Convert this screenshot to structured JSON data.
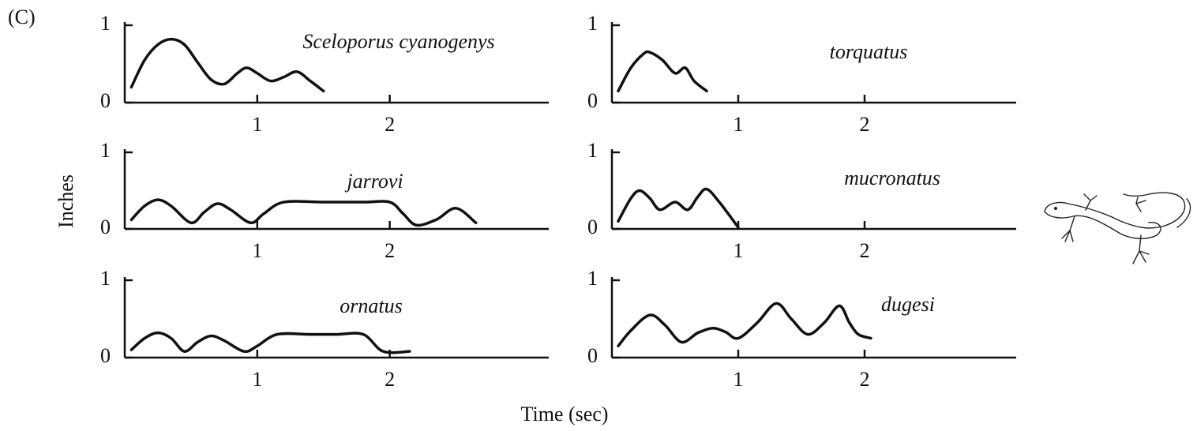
{
  "panel_label": "(C)",
  "ylabel": "Inches",
  "xlabel": "Time (sec)",
  "chart_data": [
    {
      "type": "line",
      "title": "Sceloporus cyanogenys",
      "x": [
        0.05,
        0.15,
        0.25,
        0.35,
        0.45,
        0.55,
        0.65,
        0.75,
        0.85,
        0.92,
        1.0,
        1.1,
        1.2,
        1.3,
        1.4,
        1.5
      ],
      "values": [
        0.2,
        0.55,
        0.75,
        0.82,
        0.75,
        0.52,
        0.3,
        0.24,
        0.38,
        0.45,
        0.38,
        0.28,
        0.33,
        0.4,
        0.28,
        0.15
      ],
      "xlim": [
        0,
        3.2
      ],
      "ylim": [
        0,
        1
      ],
      "xticks": [
        1,
        2
      ],
      "yticks": [
        0,
        1
      ],
      "color": "#111111"
    },
    {
      "type": "line",
      "title": "torquatus",
      "x": [
        0.05,
        0.15,
        0.25,
        0.3,
        0.4,
        0.5,
        0.58,
        0.65,
        0.75
      ],
      "values": [
        0.15,
        0.45,
        0.63,
        0.65,
        0.55,
        0.38,
        0.45,
        0.28,
        0.15
      ],
      "xlim": [
        0,
        3.2
      ],
      "ylim": [
        0,
        1
      ],
      "xticks": [
        1,
        2
      ],
      "yticks": [
        0,
        1
      ],
      "color": "#111111"
    },
    {
      "type": "line",
      "title": "jarrovi",
      "x": [
        0.05,
        0.15,
        0.25,
        0.35,
        0.5,
        0.6,
        0.7,
        0.8,
        0.95,
        1.05,
        1.2,
        1.5,
        1.8,
        2.0,
        2.1,
        2.2,
        2.35,
        2.5,
        2.65
      ],
      "values": [
        0.12,
        0.3,
        0.38,
        0.3,
        0.08,
        0.22,
        0.33,
        0.25,
        0.08,
        0.2,
        0.35,
        0.35,
        0.35,
        0.35,
        0.2,
        0.05,
        0.12,
        0.27,
        0.08
      ],
      "xlim": [
        0,
        3.2
      ],
      "ylim": [
        0,
        1
      ],
      "xticks": [
        1,
        2
      ],
      "yticks": [
        0,
        1
      ],
      "color": "#111111"
    },
    {
      "type": "line",
      "title": "mucronatus",
      "x": [
        0.05,
        0.15,
        0.22,
        0.3,
        0.38,
        0.5,
        0.6,
        0.68,
        0.75,
        0.85,
        1.0
      ],
      "values": [
        0.1,
        0.4,
        0.5,
        0.4,
        0.25,
        0.35,
        0.25,
        0.42,
        0.52,
        0.35,
        0.02
      ],
      "xlim": [
        0,
        3.2
      ],
      "ylim": [
        0,
        1
      ],
      "xticks": [
        1,
        2
      ],
      "yticks": [
        0,
        1
      ],
      "color": "#111111"
    },
    {
      "type": "line",
      "title": "ornatus",
      "x": [
        0.05,
        0.15,
        0.25,
        0.35,
        0.45,
        0.55,
        0.65,
        0.75,
        0.9,
        1.0,
        1.15,
        1.4,
        1.6,
        1.8,
        1.95,
        2.15
      ],
      "values": [
        0.1,
        0.25,
        0.32,
        0.25,
        0.08,
        0.2,
        0.28,
        0.22,
        0.08,
        0.15,
        0.3,
        0.3,
        0.3,
        0.3,
        0.08,
        0.08
      ],
      "xlim": [
        0,
        3.2
      ],
      "ylim": [
        0,
        1
      ],
      "xticks": [
        1,
        2
      ],
      "yticks": [
        0,
        1
      ],
      "color": "#111111"
    },
    {
      "type": "line",
      "title": "dugesi",
      "x": [
        0.05,
        0.15,
        0.3,
        0.42,
        0.55,
        0.68,
        0.8,
        0.9,
        1.0,
        1.15,
        1.3,
        1.42,
        1.55,
        1.68,
        1.8,
        1.88,
        1.95,
        2.05
      ],
      "values": [
        0.15,
        0.35,
        0.55,
        0.42,
        0.2,
        0.32,
        0.38,
        0.33,
        0.25,
        0.45,
        0.7,
        0.5,
        0.3,
        0.45,
        0.67,
        0.45,
        0.3,
        0.25
      ],
      "xlim": [
        0,
        3.2
      ],
      "ylim": [
        0,
        1
      ],
      "xticks": [
        1,
        2
      ],
      "yticks": [
        0,
        1
      ],
      "color": "#111111"
    }
  ]
}
